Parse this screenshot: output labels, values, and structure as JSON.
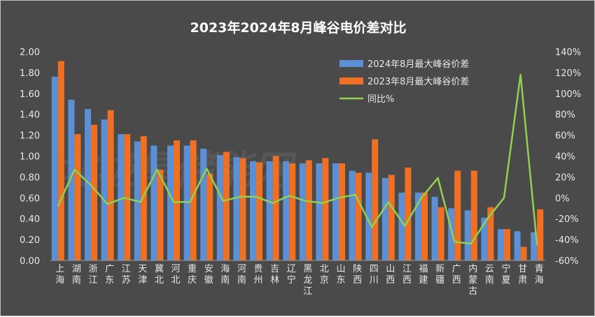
{
  "chart_data": {
    "type": "bar",
    "title": "2023年2024年8月峰谷电价差对比",
    "watermark": "北极星储能网",
    "categories": [
      "上海",
      "湖南",
      "浙江",
      "广东",
      "江苏",
      "天津",
      "冀北",
      "河北",
      "重庆",
      "安徽",
      "海南",
      "河南",
      "贵州",
      "吉林",
      "辽宁",
      "黑龙江",
      "北京",
      "山东",
      "陕西",
      "四川",
      "山西",
      "江西",
      "福建",
      "新疆",
      "广西",
      "内蒙古",
      "云南",
      "宁夏",
      "甘肃",
      "青海"
    ],
    "series": [
      {
        "name": "2024年8月最大峰谷价差",
        "type": "bar",
        "axis": "left",
        "color": "#5b8fd6",
        "values": [
          1.76,
          1.54,
          1.45,
          1.35,
          1.21,
          1.14,
          1.1,
          1.1,
          1.1,
          1.07,
          1.01,
          0.99,
          0.95,
          0.95,
          0.95,
          0.93,
          0.93,
          0.93,
          0.86,
          0.84,
          0.79,
          0.65,
          0.65,
          0.61,
          0.5,
          0.48,
          0.41,
          0.3,
          0.28,
          0.27
        ]
      },
      {
        "name": "2023年8月最大峰谷价差",
        "type": "bar",
        "axis": "left",
        "color": "#f07023",
        "values": [
          1.91,
          1.21,
          1.3,
          1.44,
          1.21,
          1.19,
          0.87,
          1.15,
          1.15,
          0.83,
          1.04,
          0.98,
          0.94,
          1.0,
          0.93,
          0.96,
          0.98,
          0.93,
          0.84,
          1.16,
          0.82,
          0.89,
          0.65,
          0.51,
          0.86,
          0.86,
          0.51,
          0.3,
          0.13,
          0.49
        ]
      },
      {
        "name": "同比%",
        "type": "line",
        "axis": "right",
        "color": "#92d050",
        "values": [
          -8,
          27,
          12,
          -6,
          0,
          -4,
          27,
          -4,
          -4,
          28,
          -3,
          1,
          1,
          -5,
          2,
          -3,
          -5,
          0,
          3,
          -28,
          -4,
          -27,
          0,
          19,
          -42,
          -44,
          -20,
          0,
          118,
          -45
        ]
      }
    ],
    "ylim_left": [
      0,
      2.0
    ],
    "ylim_right": [
      -60,
      140
    ],
    "yticks_left": [
      "0.00",
      "0.20",
      "0.40",
      "0.60",
      "0.80",
      "1.00",
      "1.20",
      "1.40",
      "1.60",
      "1.80",
      "2.00"
    ],
    "yticks_right": [
      "-60%",
      "-40%",
      "-20%",
      "0%",
      "20%",
      "40%",
      "60%",
      "80%",
      "100%",
      "120%",
      "140%"
    ],
    "legend_position": "top-right",
    "grid": false
  }
}
